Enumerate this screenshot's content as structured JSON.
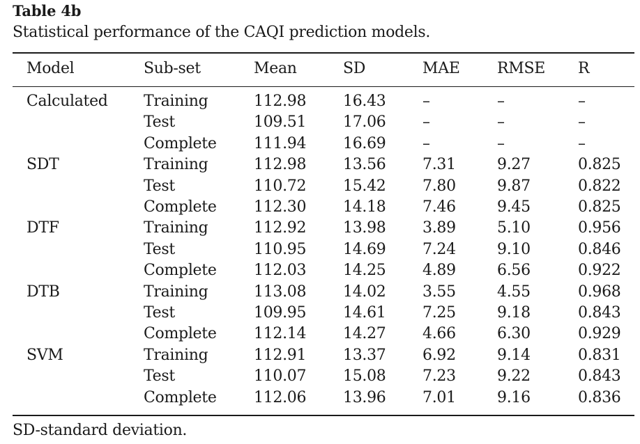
{
  "title": "Table 4b",
  "caption": "Statistical performance of the CAQI prediction models.",
  "columns": [
    "Model",
    "Sub-set",
    "Mean",
    "SD",
    "MAE",
    "RMSE",
    "R"
  ],
  "rows": [
    [
      "Calculated",
      "Training",
      "112.98",
      "16.43",
      "–",
      "–",
      "–"
    ],
    [
      "",
      "Test",
      "109.51",
      "17.06",
      "–",
      "–",
      "–"
    ],
    [
      "",
      "Complete",
      "111.94",
      "16.69",
      "–",
      "–",
      "–"
    ],
    [
      "SDT",
      "Training",
      "112.98",
      "13.56",
      "7.31",
      "9.27",
      "0.825"
    ],
    [
      "",
      "Test",
      "110.72",
      "15.42",
      "7.80",
      "9.87",
      "0.822"
    ],
    [
      "",
      "Complete",
      "112.30",
      "14.18",
      "7.46",
      "9.45",
      "0.825"
    ],
    [
      "DTF",
      "Training",
      "112.92",
      "13.98",
      "3.89",
      "5.10",
      "0.956"
    ],
    [
      "",
      "Test",
      "110.95",
      "14.69",
      "7.24",
      "9.10",
      "0.846"
    ],
    [
      "",
      "Complete",
      "112.03",
      "14.25",
      "4.89",
      "6.56",
      "0.922"
    ],
    [
      "DTB",
      "Training",
      "113.08",
      "14.02",
      "3.55",
      "4.55",
      "0.968"
    ],
    [
      "",
      "Test",
      "109.95",
      "14.61",
      "7.25",
      "9.18",
      "0.843"
    ],
    [
      "",
      "Complete",
      "112.14",
      "14.27",
      "4.66",
      "6.30",
      "0.929"
    ],
    [
      "SVM",
      "Training",
      "112.91",
      "13.37",
      "6.92",
      "9.14",
      "0.831"
    ],
    [
      "",
      "Test",
      "110.07",
      "15.08",
      "7.23",
      "9.22",
      "0.843"
    ],
    [
      "",
      "Complete",
      "112.06",
      "13.96",
      "7.01",
      "9.16",
      "0.836"
    ]
  ],
  "footnote": "SD-standard deviation."
}
